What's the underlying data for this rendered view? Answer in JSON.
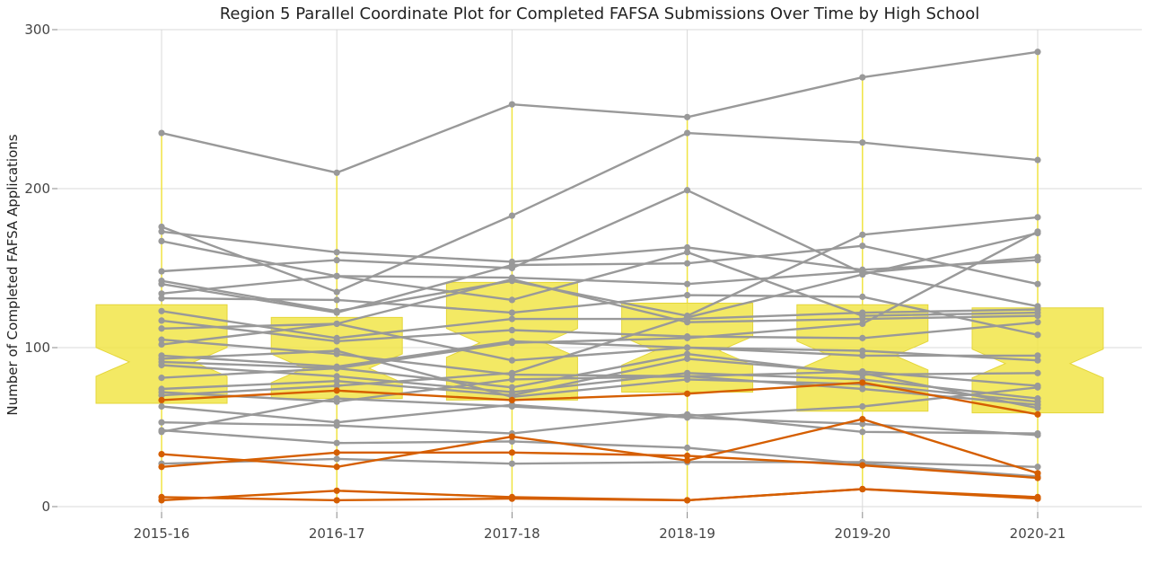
{
  "chart_data": {
    "type": "line",
    "title": "Region 5 Parallel Coordinate Plot for Completed FAFSA Submissions Over Time by High School",
    "xlabel": "",
    "ylabel": "Number of Completed FAFSA Applications",
    "categories": [
      "2015-16",
      "2016-17",
      "2017-18",
      "2018-19",
      "2019-20",
      "2020-21"
    ],
    "y_ticks": [
      "0",
      "100",
      "200",
      "300"
    ],
    "ylim": [
      0,
      300
    ],
    "grid": true,
    "colors": {
      "gray": "#999999",
      "highlight": "#d55e00",
      "box": "#f0e442"
    },
    "boxplots": [
      {
        "q1": 65,
        "median": 91,
        "q3": 127,
        "min": 4,
        "max": 235
      },
      {
        "q1": 68,
        "median": 87,
        "q3": 119,
        "min": 4,
        "max": 210
      },
      {
        "q1": 67,
        "median": 103,
        "q3": 141,
        "min": 5,
        "max": 253
      },
      {
        "q1": 72,
        "median": 98,
        "q3": 128,
        "min": 4,
        "max": 245
      },
      {
        "q1": 60,
        "median": 95,
        "q3": 127,
        "min": 11,
        "max": 270
      },
      {
        "q1": 59,
        "median": 90,
        "q3": 125,
        "min": 5,
        "max": 286
      }
    ],
    "series": [
      {
        "group": "gray",
        "values": [
          235,
          210,
          253,
          245,
          270,
          286
        ]
      },
      {
        "group": "gray",
        "values": [
          176,
          135,
          183,
          235,
          229,
          218
        ]
      },
      {
        "group": "gray",
        "values": [
          173,
          160,
          154,
          163,
          149,
          155
        ]
      },
      {
        "group": "gray",
        "values": [
          167,
          145,
          144,
          140,
          148,
          126
        ]
      },
      {
        "group": "gray",
        "values": [
          148,
          155,
          150,
          199,
          147,
          157
        ]
      },
      {
        "group": "gray",
        "values": [
          142,
          123,
          142,
          120,
          171,
          182
        ]
      },
      {
        "group": "gray",
        "values": [
          140,
          122,
          152,
          153,
          164,
          140
        ]
      },
      {
        "group": "gray",
        "values": [
          134,
          145,
          130,
          160,
          120,
          122
        ]
      },
      {
        "group": "gray",
        "values": [
          131,
          130,
          122,
          133,
          132,
          108
        ]
      },
      {
        "group": "gray",
        "values": [
          123,
          106,
          118,
          118,
          122,
          124
        ]
      },
      {
        "group": "gray",
        "values": [
          117,
          104,
          111,
          107,
          106,
          116
        ]
      },
      {
        "group": "gray",
        "values": [
          112,
          115,
          92,
          100,
          98,
          92
        ]
      },
      {
        "group": "gray",
        "values": [
          105,
          96,
          83,
          82,
          85,
          76
        ]
      },
      {
        "group": "gray",
        "values": [
          102,
          115,
          143,
          116,
          118,
          120
        ]
      },
      {
        "group": "gray",
        "values": [
          95,
          88,
          104,
          100,
          95,
          95
        ]
      },
      {
        "group": "gray",
        "values": [
          93,
          98,
          69,
          80,
          77,
          66
        ]
      },
      {
        "group": "gray",
        "values": [
          91,
          87,
          75,
          96,
          83,
          84
        ]
      },
      {
        "group": "gray",
        "values": [
          89,
          82,
          72,
          84,
          80,
          68
        ]
      },
      {
        "group": "gray",
        "values": [
          81,
          87,
          103,
          106,
          115,
          173
        ]
      },
      {
        "group": "gray",
        "values": [
          74,
          79,
          70,
          93,
          84,
          62
        ]
      },
      {
        "group": "gray",
        "values": [
          72,
          66,
          80,
          82,
          74,
          64
        ]
      },
      {
        "group": "gray",
        "values": [
          70,
          76,
          84,
          119,
          146,
          172
        ]
      },
      {
        "group": "gray",
        "values": [
          63,
          53,
          64,
          56,
          52,
          45
        ]
      },
      {
        "group": "gray",
        "values": [
          53,
          51,
          46,
          58,
          47,
          46
        ]
      },
      {
        "group": "gray",
        "values": [
          48,
          40,
          41,
          37,
          27,
          19
        ]
      },
      {
        "group": "gray",
        "values": [
          47,
          68,
          63,
          57,
          63,
          75
        ]
      },
      {
        "group": "gray",
        "values": [
          27,
          30,
          27,
          28,
          28,
          25
        ]
      },
      {
        "group": "highlight",
        "values": [
          67,
          73,
          67,
          71,
          78,
          58
        ]
      },
      {
        "group": "highlight",
        "values": [
          33,
          25,
          44,
          29,
          55,
          21
        ]
      },
      {
        "group": "highlight",
        "values": [
          25,
          34,
          34,
          32,
          26,
          18
        ]
      },
      {
        "group": "highlight",
        "values": [
          6,
          4,
          5,
          4,
          11,
          5
        ]
      },
      {
        "group": "highlight",
        "values": [
          4,
          10,
          6,
          4,
          11,
          6
        ]
      }
    ]
  }
}
